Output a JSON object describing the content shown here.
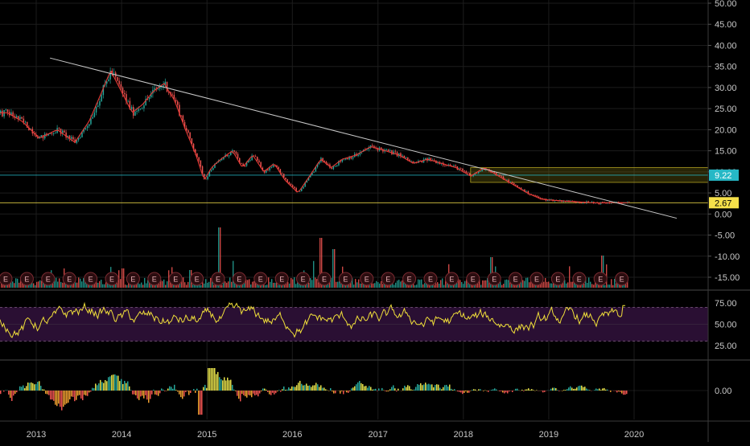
{
  "colors": {
    "background": "#000000",
    "grid": "#1c1c1c",
    "up": "#26a69a",
    "down": "#ef5350",
    "ma_red": "#e53935",
    "trendline": "#c8c8c8",
    "cyan_level": "#26b8c6",
    "yellow_level": "#f5e04a",
    "rsi": "#f0df3a",
    "rsi_band": "#2a0f33",
    "axis_text": "#c8c8c8",
    "earnings_fill": "#2b0d10",
    "earnings_stroke": "#7a2b31",
    "earnings_text": "#e8aeb2"
  },
  "chart_data": [
    {
      "type": "candlestick",
      "name": "price",
      "y_ticks": [
        "50.00",
        "45.00",
        "40.00",
        "35.00",
        "30.00",
        "25.00",
        "20.00",
        "15.00",
        "10.00",
        "5.00",
        "0.00",
        "-5.00",
        "-10.00",
        "-15.00"
      ],
      "ylim": [
        -17,
        51
      ],
      "x_ticks": [
        "2013",
        "2014",
        "2015",
        "2016",
        "2017",
        "2018",
        "2019",
        "2020"
      ],
      "series_points": [
        [
          "2012-09-01",
          24
        ],
        [
          "2012-11-01",
          22
        ],
        [
          "2013-01-15",
          18
        ],
        [
          "2013-04-01",
          20
        ],
        [
          "2013-06-15",
          17
        ],
        [
          "2013-08-15",
          22
        ],
        [
          "2013-10-01",
          28
        ],
        [
          "2013-11-15",
          34
        ],
        [
          "2014-01-01",
          29
        ],
        [
          "2014-02-15",
          24
        ],
        [
          "2014-04-01",
          26
        ],
        [
          "2014-05-15",
          29
        ],
        [
          "2014-07-01",
          31
        ],
        [
          "2014-08-15",
          27
        ],
        [
          "2014-10-01",
          20
        ],
        [
          "2014-11-15",
          14
        ],
        [
          "2014-12-20",
          8
        ],
        [
          "2015-01-20",
          11
        ],
        [
          "2015-03-01",
          13
        ],
        [
          "2015-04-20",
          15
        ],
        [
          "2015-06-01",
          11
        ],
        [
          "2015-07-15",
          14
        ],
        [
          "2015-09-01",
          10
        ],
        [
          "2015-10-15",
          12
        ],
        [
          "2015-12-01",
          8
        ],
        [
          "2016-01-25",
          5
        ],
        [
          "2016-03-15",
          9
        ],
        [
          "2016-05-01",
          13
        ],
        [
          "2016-06-15",
          11
        ],
        [
          "2016-08-01",
          13
        ],
        [
          "2016-10-01",
          14
        ],
        [
          "2016-12-01",
          16
        ],
        [
          "2017-02-01",
          15
        ],
        [
          "2017-04-01",
          14
        ],
        [
          "2017-06-01",
          12
        ],
        [
          "2017-08-01",
          13
        ],
        [
          "2017-10-01",
          12
        ],
        [
          "2017-12-01",
          11
        ],
        [
          "2018-02-01",
          9
        ],
        [
          "2018-04-01",
          11
        ],
        [
          "2018-06-01",
          9
        ],
        [
          "2018-08-01",
          7
        ],
        [
          "2018-10-01",
          5
        ],
        [
          "2018-12-01",
          3.5
        ],
        [
          "2019-02-01",
          3.2
        ],
        [
          "2019-05-01",
          2.9
        ],
        [
          "2019-08-01",
          2.6
        ],
        [
          "2019-10-01",
          2.7
        ],
        [
          "2019-12-01",
          2.67
        ]
      ],
      "trendline": [
        [
          "2013-03-01",
          37
        ],
        [
          "2020-07-01",
          -1
        ]
      ],
      "levels": [
        {
          "value": 9.22,
          "label": "9.22",
          "color_key": "cyan_level"
        },
        {
          "value": 2.67,
          "label": "2.67",
          "color_key": "yellow_level"
        }
      ],
      "zone": {
        "x_start": "2018-02-01",
        "x_end": "2020-08-01",
        "y_low": 7.5,
        "y_high": 11.0
      },
      "earnings_markers": 30,
      "earnings_label": "E"
    },
    {
      "type": "line",
      "name": "rsi",
      "y_ticks": [
        "75.00",
        "50.00",
        "25.00"
      ],
      "ylim": [
        0,
        100
      ],
      "band": [
        30,
        70
      ]
    },
    {
      "type": "histogram",
      "name": "oscillator",
      "y_ticks": [
        "0.00"
      ]
    }
  ]
}
